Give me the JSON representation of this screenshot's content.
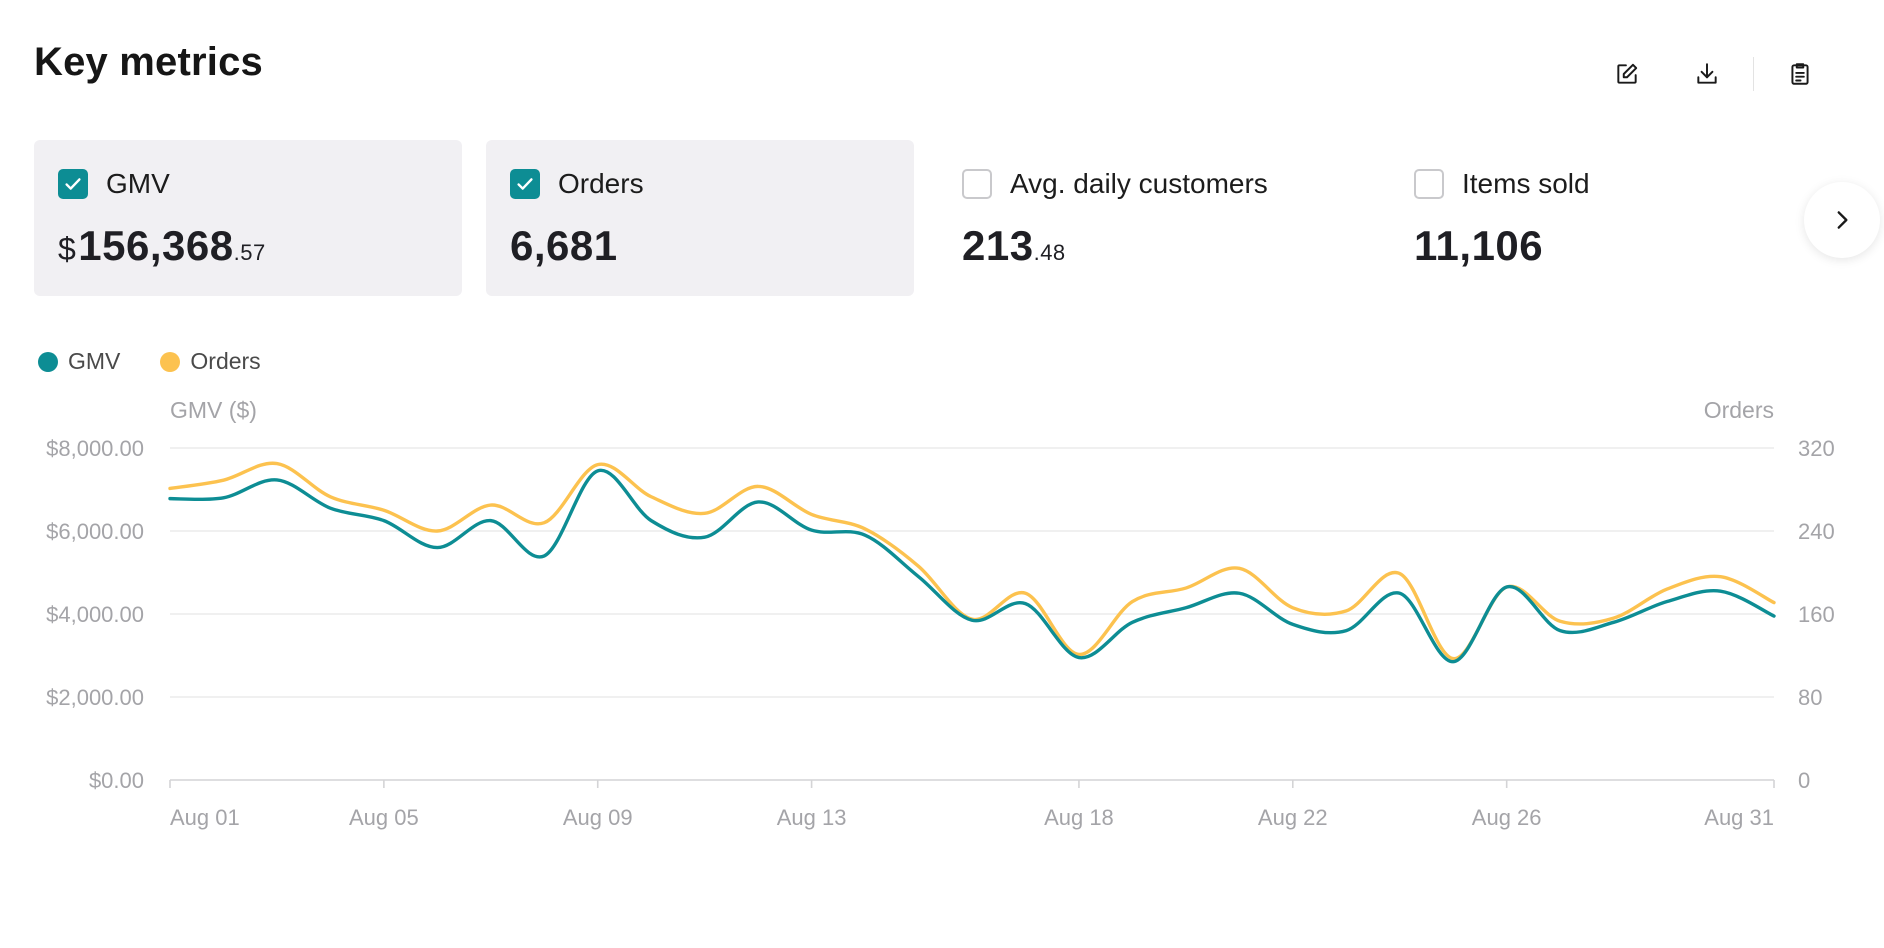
{
  "header": {
    "title": "Key metrics",
    "icons": [
      "edit-icon",
      "download-icon",
      "clipboard-icon"
    ]
  },
  "cards": [
    {
      "label": "GMV",
      "checked": true,
      "currency": "$",
      "value_int": "156,368",
      "value_dec": ".57"
    },
    {
      "label": "Orders",
      "checked": true,
      "currency": "",
      "value_int": "6,681",
      "value_dec": ""
    },
    {
      "label": "Avg. daily customers",
      "checked": false,
      "currency": "",
      "value_int": "213",
      "value_dec": ".48"
    },
    {
      "label": "Items sold",
      "checked": false,
      "currency": "",
      "value_int": "11,106",
      "value_dec": ""
    }
  ],
  "legend": [
    {
      "name": "GMV",
      "color": "#0d8d94"
    },
    {
      "name": "Orders",
      "color": "#fcc24f"
    }
  ],
  "chart_data": {
    "type": "line",
    "title": "",
    "ylabel": "GMV ($)",
    "y2label": "Orders",
    "ylim": [
      0,
      8000
    ],
    "y2lim": [
      0,
      320
    ],
    "y_ticks": [
      "$0.00",
      "$2,000.00",
      "$4,000.00",
      "$6,000.00",
      "$8,000.00"
    ],
    "y2_ticks": [
      "0",
      "80",
      "160",
      "240",
      "320"
    ],
    "x_ticks": [
      "Aug 01",
      "Aug 05",
      "Aug 09",
      "Aug 13",
      "Aug 18",
      "Aug 22",
      "Aug 26",
      "Aug 31"
    ],
    "grid": true,
    "x": [
      1,
      2,
      3,
      4,
      5,
      6,
      7,
      8,
      9,
      10,
      11,
      12,
      13,
      14,
      15,
      16,
      17,
      18,
      19,
      20,
      21,
      22,
      23,
      24,
      25,
      26,
      27,
      28,
      29,
      30,
      31
    ],
    "series": [
      {
        "name": "GMV",
        "axis": "left",
        "color": "#0d8d94",
        "values": [
          6780,
          6800,
          7230,
          6550,
          6250,
          5600,
          6250,
          5400,
          7450,
          6250,
          5850,
          6700,
          6020,
          5900,
          4900,
          3850,
          4250,
          2950,
          3800,
          4150,
          4500,
          3750,
          3600,
          4500,
          2850,
          4650,
          3600,
          3800,
          4300,
          4550,
          3950
        ]
      },
      {
        "name": "Orders",
        "axis": "right",
        "color": "#fcc24f",
        "values": [
          281,
          289,
          305,
          273,
          260,
          240,
          265,
          248,
          304,
          273,
          257,
          283,
          256,
          242,
          206,
          155,
          180,
          121,
          172,
          185,
          204,
          166,
          163,
          199,
          117,
          186,
          153,
          156,
          184,
          196,
          171
        ]
      }
    ]
  }
}
